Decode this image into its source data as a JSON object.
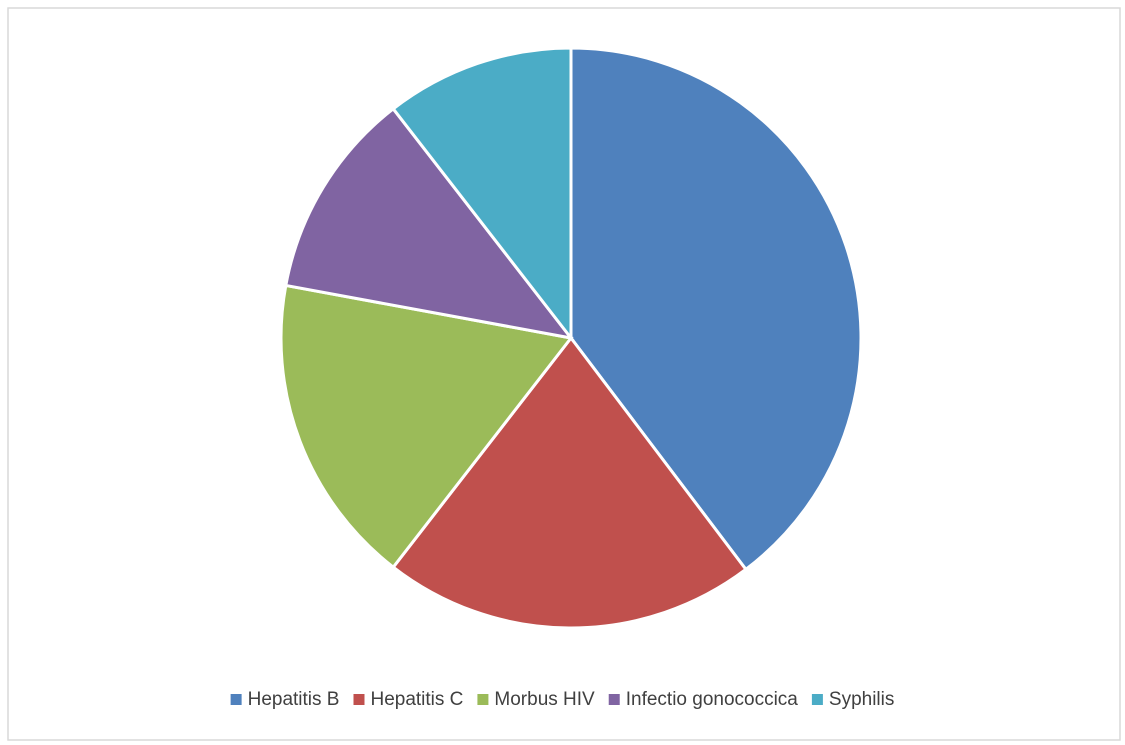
{
  "chart_data": {
    "type": "pie",
    "categories": [
      "Hepatitis B",
      "Hepatitis C",
      "Morbus HIV",
      "Infectio gonococcica",
      "Syphilis"
    ],
    "values": [
      39.7,
      20.8,
      17.4,
      11.6,
      10.5
    ],
    "colors": [
      "#4f81bd",
      "#c0504d",
      "#9bbb59",
      "#8064a2",
      "#4bacc6"
    ],
    "legend": "bottom"
  }
}
